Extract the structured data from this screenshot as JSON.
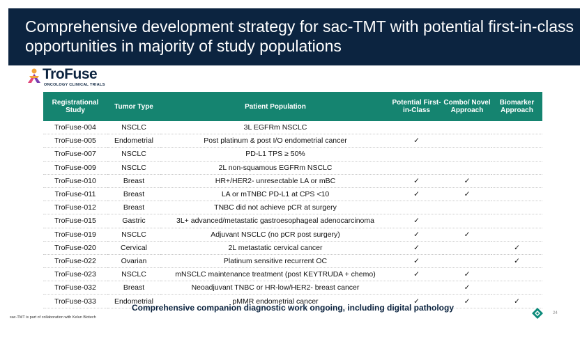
{
  "header": {
    "title": "Comprehensive development strategy for sac-TMT with potential first-in-class opportunities in majority of study populations"
  },
  "logo": {
    "text": "TroFuse",
    "subtitle": "ONCOLOGY CLINICAL TRIALS"
  },
  "table": {
    "columns": [
      "Registrational Study",
      "Tumor Type",
      "Patient Population",
      "Potential First-in-Class",
      "Combo/ Novel Approach",
      "Biomarker Approach"
    ],
    "check_symbol": "✓",
    "rows": [
      {
        "study": "TroFuse-004",
        "tumor": "NSCLC",
        "population": "3L EGFRm NSCLC",
        "fic": "",
        "combo": "",
        "biomarker": ""
      },
      {
        "study": "TroFuse-005",
        "tumor": "Endometrial",
        "population": "Post platinum & post I/O endometrial cancer",
        "fic": "✓",
        "combo": "",
        "biomarker": ""
      },
      {
        "study": "TroFuse-007",
        "tumor": "NSCLC",
        "population": "PD-L1 TPS ≥ 50%",
        "fic": "",
        "combo": "",
        "biomarker": ""
      },
      {
        "study": "TroFuse-009",
        "tumor": "NSCLC",
        "population": "2L non-squamous EGFRm NSCLC",
        "fic": "",
        "combo": "",
        "biomarker": ""
      },
      {
        "study": "TroFuse-010",
        "tumor": "Breast",
        "population": "HR+/HER2- unresectable LA or mBC",
        "fic": "✓",
        "combo": "✓",
        "biomarker": ""
      },
      {
        "study": "TroFuse-011",
        "tumor": "Breast",
        "population": "LA or mTNBC PD-L1 at CPS <10",
        "fic": "✓",
        "combo": "✓",
        "biomarker": ""
      },
      {
        "study": "TroFuse-012",
        "tumor": "Breast",
        "population": "TNBC did not achieve pCR at surgery",
        "fic": "",
        "combo": "",
        "biomarker": ""
      },
      {
        "study": "TroFuse-015",
        "tumor": "Gastric",
        "population": "3L+ advanced/metastatic gastroesophageal adenocarcinoma",
        "fic": "✓",
        "combo": "",
        "biomarker": ""
      },
      {
        "study": "TroFuse-019",
        "tumor": "NSCLC",
        "population": "Adjuvant NSCLC (no pCR post surgery)",
        "fic": "✓",
        "combo": "✓",
        "biomarker": ""
      },
      {
        "study": "TroFuse-020",
        "tumor": "Cervical",
        "population": "2L metastatic cervical cancer",
        "fic": "✓",
        "combo": "",
        "biomarker": "✓"
      },
      {
        "study": "TroFuse-022",
        "tumor": "Ovarian",
        "population": "Platinum sensitive recurrent OC",
        "fic": "✓",
        "combo": "",
        "biomarker": "✓"
      },
      {
        "study": "TroFuse-023",
        "tumor": "NSCLC",
        "population": "mNSCLC maintenance treatment (post KEYTRUDA + chemo)",
        "fic": "✓",
        "combo": "✓",
        "biomarker": ""
      },
      {
        "study": "TroFuse-032",
        "tumor": "Breast",
        "population": "Neoadjuvant TNBC or HR-low/HER2- breast cancer",
        "fic": "",
        "combo": "✓",
        "biomarker": ""
      },
      {
        "study": "TroFuse-033",
        "tumor": "Endometrial",
        "population": "pMMR endometrial cancer",
        "fic": "✓",
        "combo": "✓",
        "biomarker": "✓"
      }
    ]
  },
  "footer": {
    "companion_note": "Comprehensive companion diagnostic work ongoing, including digital pathology",
    "collaboration_note": "sac-TMT is part of collaboration with Kelun Biotech",
    "page_number": "24"
  },
  "colors": {
    "header_bg": "#0c2440",
    "table_header_bg": "#158470",
    "check": "#2a9a3a"
  }
}
